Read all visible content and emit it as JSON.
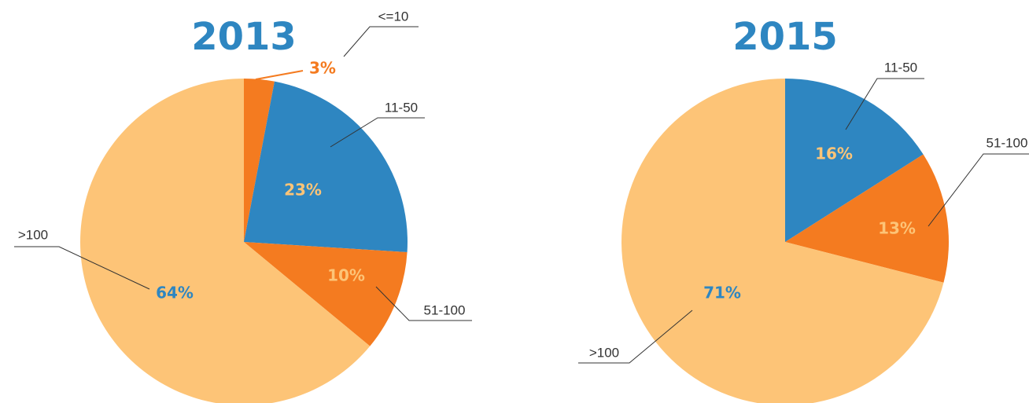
{
  "chart_data": [
    {
      "type": "pie",
      "title": "2013",
      "categories": [
        "<=10",
        "11-50",
        "51-100",
        ">100"
      ],
      "values": [
        3,
        23,
        10,
        64
      ],
      "value_labels": [
        "3%",
        "23%",
        "10%",
        "64%"
      ],
      "colors": [
        "#f47b20",
        "#2e86c1",
        "#f47b20",
        "#fdc477"
      ]
    },
    {
      "type": "pie",
      "title": "2015",
      "categories": [
        "11-50",
        "51-100",
        ">100"
      ],
      "values": [
        16,
        13,
        71
      ],
      "value_labels": [
        "16%",
        "13%",
        "71%"
      ],
      "colors": [
        "#2e86c1",
        "#f47b20",
        "#fdc477"
      ]
    }
  ]
}
